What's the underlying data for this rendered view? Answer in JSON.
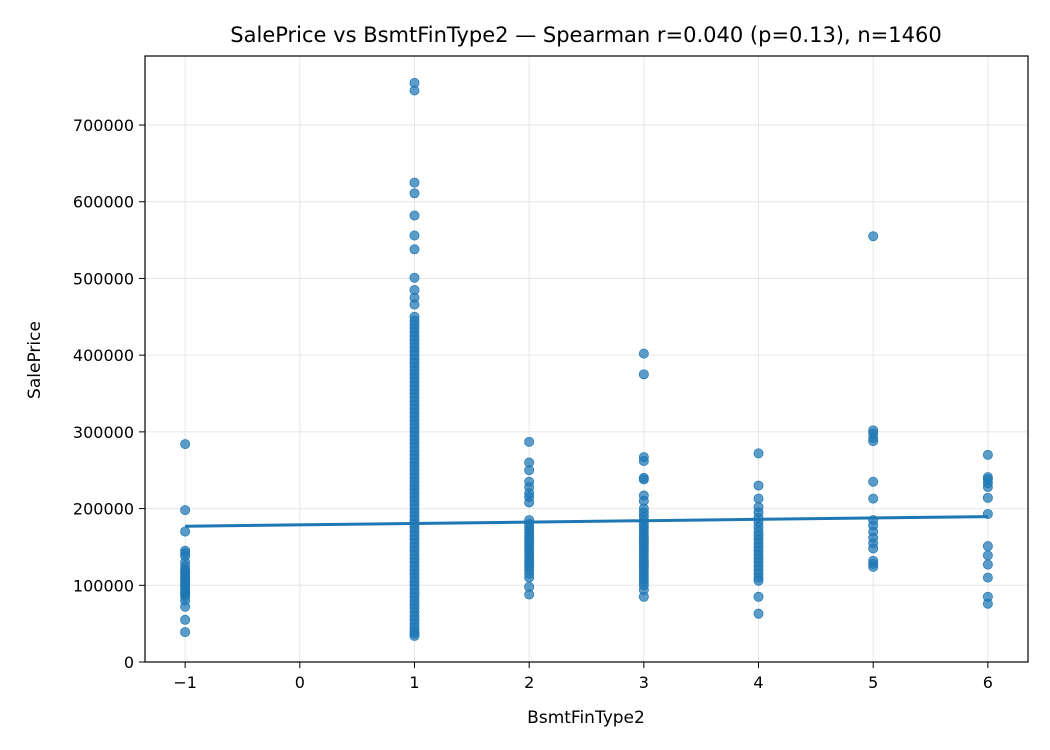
{
  "chart_data": {
    "type": "scatter",
    "title": "SalePrice vs BsmtFinType2 — Spearman r=0.040 (p=0.13), n=1460",
    "xlabel": "BsmtFinType2",
    "ylabel": "SalePrice",
    "xlim": [
      -1.35,
      6.35
    ],
    "ylim": [
      0,
      790000
    ],
    "x_ticks": [
      -1,
      0,
      1,
      2,
      3,
      4,
      5,
      6
    ],
    "x_tick_labels": [
      "−1",
      "0",
      "1",
      "2",
      "3",
      "4",
      "5",
      "6"
    ],
    "y_ticks": [
      0,
      100000,
      200000,
      300000,
      400000,
      500000,
      600000,
      700000
    ],
    "y_tick_labels": [
      "0",
      "100000",
      "200000",
      "300000",
      "400000",
      "500000",
      "600000",
      "700000"
    ],
    "grid": true,
    "point_color": "#1f77b4",
    "line_color": "#1f77b4",
    "series": [
      {
        "type": "scatter",
        "groups": [
          {
            "x": -1,
            "y": [
              284000,
              198000,
              170000,
              145000,
              142000,
              138000,
              130000,
              125000,
              120000,
              118000,
              115000,
              112000,
              110000,
              108000,
              105000,
              102000,
              100000,
              98000,
              95000,
              92000,
              90000,
              88000,
              85000,
              80000,
              72000,
              55000,
              39000
            ]
          },
          {
            "x": 1,
            "y": [
              755000,
              745000,
              625000,
              611000,
              582000,
              556000,
              538000,
              501000,
              485000,
              475000,
              466000,
              450000,
              445000,
              440000,
              435000,
              430000,
              425000,
              420000,
              415000,
              410000,
              405000,
              400000,
              395000,
              390000,
              385000,
              380000,
              375000,
              370000,
              365000,
              360000,
              355000,
              350000,
              345000,
              340000,
              335000,
              330000,
              325000,
              320000,
              315000,
              310000,
              305000,
              300000,
              295000,
              290000,
              285000,
              280000,
              275000,
              270000,
              265000,
              260000,
              255000,
              250000,
              245000,
              240000,
              235000,
              230000,
              225000,
              220000,
              215000,
              210000,
              205000,
              200000,
              195000,
              190000,
              185000,
              180000,
              175000,
              170000,
              165000,
              160000,
              155000,
              150000,
              145000,
              140000,
              135000,
              130000,
              125000,
              120000,
              115000,
              110000,
              105000,
              100000,
              95000,
              90000,
              85000,
              80000,
              75000,
              70000,
              65000,
              60000,
              55000,
              50000,
              45000,
              40000,
              37000,
              34000
            ]
          },
          {
            "x": 2,
            "y": [
              287000,
              260000,
              250000,
              235000,
              228000,
              220000,
              215000,
              208000,
              185000,
              180000,
              176000,
              172000,
              168000,
              164000,
              160000,
              156000,
              152000,
              148000,
              144000,
              140000,
              136000,
              132000,
              128000,
              124000,
              120000,
              115000,
              110000,
              98000,
              88000
            ]
          },
          {
            "x": 3,
            "y": [
              402000,
              375000,
              267000,
              262000,
              240000,
              238000,
              217000,
              210000,
              200000,
              195000,
              190000,
              185000,
              180000,
              176000,
              172000,
              168000,
              164000,
              160000,
              156000,
              152000,
              148000,
              144000,
              140000,
              136000,
              132000,
              128000,
              124000,
              120000,
              116000,
              112000,
              108000,
              104000,
              100000,
              94000,
              85000
            ]
          },
          {
            "x": 4,
            "y": [
              272000,
              230000,
              213000,
              202000,
              195000,
              188000,
              182000,
              176000,
              170000,
              165000,
              160000,
              155000,
              150000,
              145000,
              140000,
              135000,
              130000,
              125000,
              120000,
              115000,
              110000,
              106000,
              85000,
              63000
            ]
          },
          {
            "x": 5,
            "y": [
              555000,
              302000,
              298000,
              292000,
              288000,
              235000,
              213000,
              185000,
              178000,
              170000,
              162000,
              155000,
              148000,
              132000,
              128000,
              124000
            ]
          },
          {
            "x": 6,
            "y": [
              270000,
              241000,
              238000,
              233000,
              228000,
              214000,
              193000,
              151000,
              139000,
              127000,
              110000,
              85000,
              76000
            ]
          }
        ]
      },
      {
        "type": "line",
        "x": [
          -1,
          6
        ],
        "y": [
          177000,
          189500
        ]
      }
    ]
  }
}
